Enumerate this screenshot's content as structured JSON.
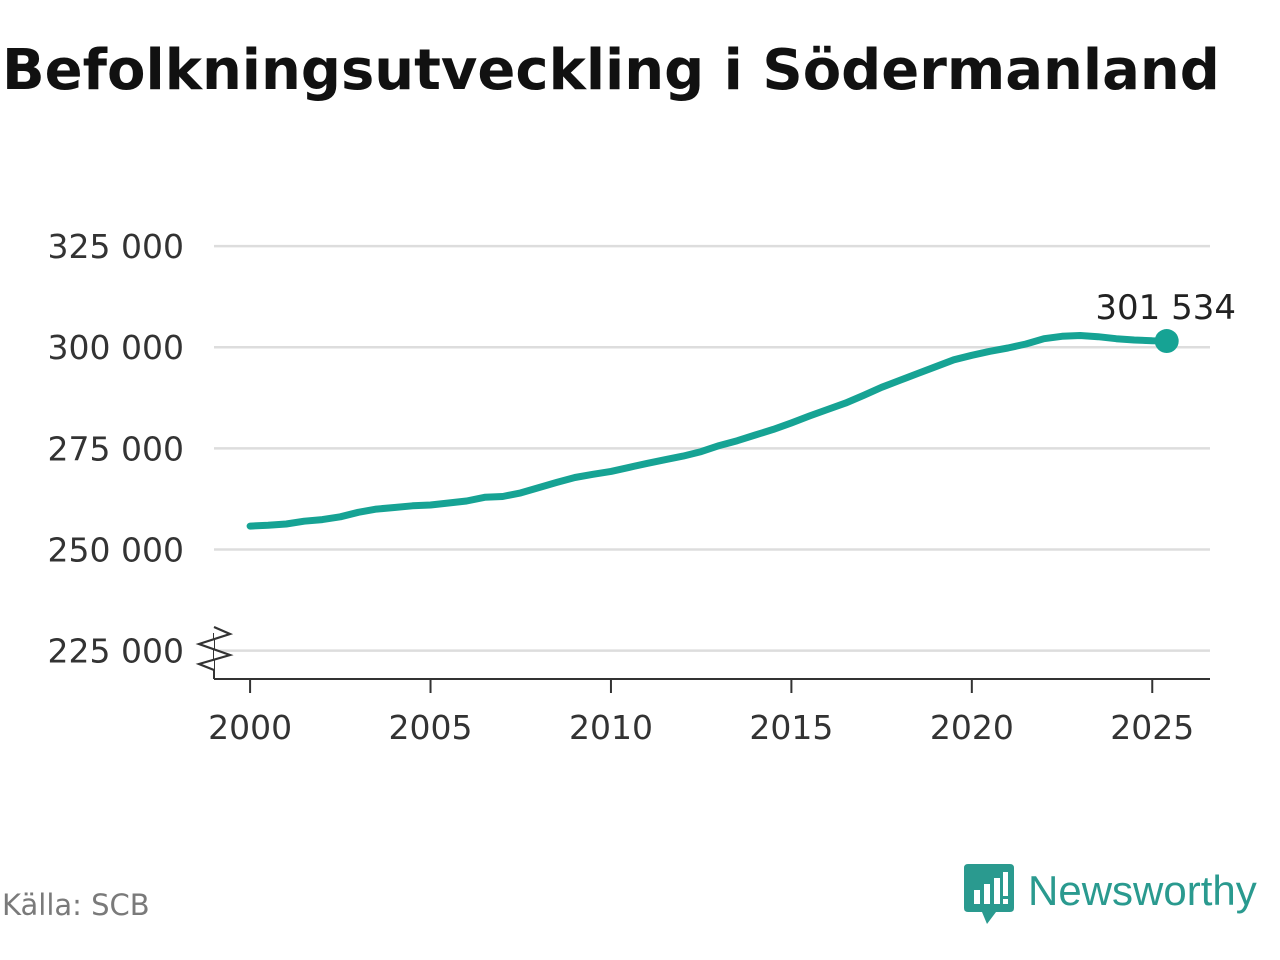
{
  "title": "Befolkningsutveckling i Södermanland",
  "source": "Källa: SCB",
  "brand": {
    "name": "Newsworthy",
    "icon": "newsworthy-logo-icon",
    "color": "#2a9a8f"
  },
  "chart_data": {
    "type": "line",
    "title": "Befolkningsutveckling i Södermanland",
    "xlabel": "",
    "ylabel": "",
    "xlim": [
      1999.0,
      2026.6
    ],
    "ylim": [
      218000,
      327000
    ],
    "axis_break": true,
    "grid": true,
    "color": "#16a394",
    "x_ticks": [
      2000,
      2005,
      2010,
      2015,
      2020,
      2025
    ],
    "x_tick_labels": [
      "2000",
      "2005",
      "2010",
      "2015",
      "2020",
      "2025"
    ],
    "y_ticks": [
      225000,
      250000,
      275000,
      300000,
      325000
    ],
    "y_tick_labels": [
      "225 000",
      "250 000",
      "275 000",
      "300 000",
      "325 000"
    ],
    "end_label": "301 534",
    "series": [
      {
        "x": [
          2000.0,
          2000.5,
          2001.0,
          2001.5,
          2002.0,
          2002.5,
          2003.0,
          2003.5,
          2004.0,
          2004.5,
          2005.0,
          2005.5,
          2006.0,
          2006.5,
          2007.0,
          2007.5,
          2008.0,
          2008.5,
          2009.0,
          2009.5,
          2010.0,
          2010.5,
          2011.0,
          2011.5,
          2012.0,
          2012.5,
          2013.0,
          2013.5,
          2014.0,
          2014.5,
          2015.0,
          2015.5,
          2016.0,
          2016.5,
          2017.0,
          2017.5,
          2018.0,
          2018.5,
          2019.0,
          2019.5,
          2020.0,
          2020.5,
          2021.0,
          2021.5,
          2022.0,
          2022.5,
          2023.0,
          2023.5,
          2024.0,
          2024.5,
          2025.0,
          2025.4
        ],
        "values": [
          255800,
          256000,
          256300,
          257000,
          257400,
          258100,
          259200,
          260000,
          260400,
          260800,
          261000,
          261500,
          262000,
          262900,
          263100,
          264000,
          265300,
          266600,
          267800,
          268600,
          269300,
          270300,
          271300,
          272200,
          273100,
          274200,
          275700,
          276900,
          278300,
          279700,
          281300,
          283000,
          284600,
          286200,
          288100,
          290100,
          291800,
          293500,
          295200,
          296900,
          298000,
          299000,
          299800,
          300800,
          302100,
          302700,
          302900,
          302600,
          302100,
          301800,
          301600,
          301534
        ]
      }
    ]
  }
}
